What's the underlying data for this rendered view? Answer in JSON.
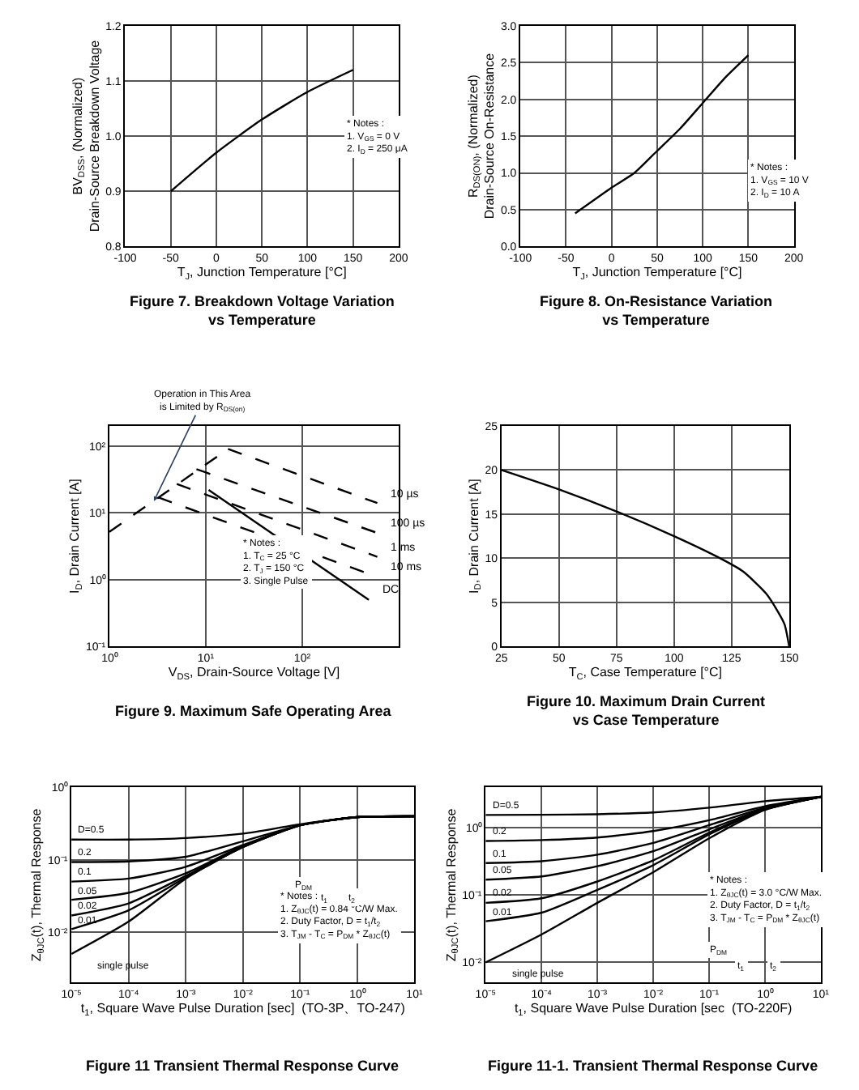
{
  "chart_data": [
    {
      "type": "line",
      "title": "Figure 7. Breakdown Voltage Variation\nvs Temperature",
      "xlabel": "T$_{J}$, Junction Temperature [°C]",
      "ylabel": "BV$_{DSS}$, (Normalized)\nDrain-Source Breakdown Voltage",
      "xlim": [
        -100,
        200
      ],
      "xticks": [
        -100,
        -50,
        0,
        50,
        100,
        150,
        200
      ],
      "ylim": [
        0.8,
        1.2
      ],
      "yticks": [
        0.8,
        0.9,
        {
          "value": 1,
          "label": "1.0"
        },
        1.1,
        1.2
      ],
      "grid": true,
      "series": [
        {
          "color": "#000000",
          "x": [
            -50,
            0,
            50,
            100,
            150
          ],
          "values": [
            0.9,
            0.97,
            1.03,
            1.08,
            1.12
          ]
        }
      ],
      "annotations": [
        "* Notes :\n1. V$_{GS}$ = 0 V\n2. I$_{D}$ = 250 μA"
      ]
    },
    {
      "type": "line",
      "title": "Figure 8. On-Resistance Variation\nvs Temperature",
      "xlabel": "T$_{J}$, Junction Temperature [°C]",
      "ylabel": "R$_{DS(ON)}$, (Normalized)\nDrain-Source On-Resistance",
      "xlim": [
        -100,
        200
      ],
      "xticks": [
        -100,
        -50,
        0,
        50,
        100,
        150,
        200
      ],
      "ylim": [
        0,
        3
      ],
      "yticks": [
        {
          "value": 0,
          "label": "0.0"
        },
        0.5,
        {
          "value": 1,
          "label": "1.0"
        },
        1.5,
        {
          "value": 2,
          "label": "2.0"
        },
        2.5,
        {
          "value": 3,
          "label": "3.0"
        }
      ],
      "grid": true,
      "series": [
        {
          "color": "#000000",
          "x": [
            -40,
            0,
            25,
            50,
            75,
            100,
            125,
            150
          ],
          "values": [
            0.45,
            0.8,
            1.0,
            1.3,
            1.6,
            1.95,
            2.3,
            2.6
          ]
        }
      ],
      "annotations": [
        "* Notes :\n1. V$_{GS}$ = 10 V\n2. I$_{D}$ = 10 A"
      ]
    },
    {
      "type": "line",
      "title": "Figure 9. Maximum Safe Operating Area",
      "xlabel": "V$_{DS}$, Drain-Source Voltage [V]",
      "ylabel": "I$_{D}$, Drain Current [A]",
      "log": "xy",
      "xlim": [
        1,
        1000
      ],
      "xticks": [
        {
          "value": 1,
          "label": "10⁰"
        },
        {
          "value": 10,
          "label": "10¹"
        },
        {
          "value": 100,
          "label": "10²"
        }
      ],
      "ylim": [
        0.1,
        200
      ],
      "yticks": [
        {
          "value": 0.1,
          "label": "10⁻¹"
        },
        {
          "value": 1,
          "label": "10⁰"
        },
        {
          "value": 10,
          "label": "10¹"
        },
        {
          "value": 100,
          "label": "10²"
        }
      ],
      "grid": true,
      "series": [
        {
          "color": "#000000",
          "line_style": "dashed",
          "x": [
            1,
            17
          ],
          "values": [
            5.2,
            90
          ]
        },
        {
          "name": "10 µs",
          "color": "#000000",
          "line_style": "dashed",
          "x": [
            17,
            600
          ],
          "values": [
            90,
            14
          ]
        },
        {
          "name": "100 µs",
          "color": "#000000",
          "line_style": "dashed",
          "x": [
            8,
            600
          ],
          "values": [
            45,
            5
          ]
        },
        {
          "name": "1 ms",
          "color": "#000000",
          "line_style": "dashed",
          "x": [
            5,
            600
          ],
          "values": [
            27,
            2.2
          ]
        },
        {
          "name": "10 ms",
          "color": "#000000",
          "line_style": "dashed",
          "x": [
            3.2,
            600
          ],
          "values": [
            17,
            1.1
          ]
        },
        {
          "name": "DC",
          "color": "#000000",
          "line_style": "solid",
          "x": [
            10.7,
            490
          ],
          "values": [
            22,
            0.5
          ]
        }
      ],
      "annotations": [
        {
          "text": "Operation in This Area\nis Limited by R$_{DS(on)}$",
          "x": 2.9,
          "y": 15
        },
        "* Notes :\n1. T$_{C}$ = 25 °C\n2. T$_{J}$ = 150 °C\n3. Single Pulse"
      ]
    },
    {
      "type": "line",
      "title": "Figure 10. Maximum Drain Current\nvs Case Temperature",
      "xlabel": "T$_{C}$, Case Temperature [°C]",
      "ylabel": "I$_{D}$, Drain Current [A]",
      "xlim": [
        25,
        150
      ],
      "xticks": [
        25,
        50,
        75,
        100,
        125,
        150
      ],
      "ylim": [
        0,
        25
      ],
      "yticks": [
        0,
        5,
        10,
        15,
        20,
        25
      ],
      "grid": true,
      "series": [
        {
          "color": "#000000",
          "x": [
            25,
            50,
            75,
            100,
            120,
            130,
            140,
            145,
            148,
            150
          ],
          "values": [
            20,
            17.8,
            15.3,
            12.5,
            10,
            8.5,
            6,
            4,
            2.5,
            0
          ]
        }
      ]
    },
    {
      "type": "line",
      "title": "Figure 11 Transient Thermal Response Curve",
      "xlabel": "t$_{1}$, Square Wave Pulse Duration [sec]  (TO-3P、TO-247)",
      "ylabel": "Z$_{θJC}$(t), Thermal Response",
      "log": "xy",
      "xlim": [
        1e-05,
        10
      ],
      "xticks": [
        {
          "value": 1e-05,
          "label": "10⁻⁵"
        },
        {
          "value": 0.0001,
          "label": "10⁻⁴"
        },
        {
          "value": 0.001,
          "label": "10⁻³"
        },
        {
          "value": 0.01,
          "label": "10⁻²"
        },
        {
          "value": 0.1,
          "label": "10⁻¹"
        },
        {
          "value": 1,
          "label": "10⁰"
        },
        {
          "value": 10,
          "label": "10¹"
        }
      ],
      "ylim": [
        0.002,
        1
      ],
      "yticks": [
        {
          "value": 0.01,
          "label": "10⁻²"
        },
        {
          "value": 0.1,
          "label": "10⁻¹"
        },
        {
          "value": 1,
          "label": "10⁰"
        }
      ],
      "grid": true,
      "series": [
        {
          "name": "D=0.5",
          "color": "#000000",
          "x": [
            1e-05,
            0.0001,
            0.001,
            0.01,
            0.1,
            1,
            10
          ],
          "values": [
            0.19,
            0.19,
            0.2,
            0.23,
            0.31,
            0.39,
            0.4
          ]
        },
        {
          "name": "0.2",
          "color": "#000000",
          "x": [
            1e-05,
            0.0001,
            0.001,
            0.01,
            0.1,
            1,
            10
          ],
          "values": [
            0.093,
            0.095,
            0.11,
            0.18,
            0.3,
            0.39,
            0.4
          ]
        },
        {
          "name": "0.1",
          "color": "#000000",
          "x": [
            1e-05,
            0.0001,
            0.001,
            0.01,
            0.1,
            1,
            10
          ],
          "values": [
            0.05,
            0.055,
            0.08,
            0.16,
            0.3,
            0.39,
            0.4
          ]
        },
        {
          "name": "0.05",
          "color": "#000000",
          "x": [
            1e-05,
            0.0001,
            0.001,
            0.01,
            0.1,
            1,
            10
          ],
          "values": [
            0.028,
            0.035,
            0.065,
            0.155,
            0.3,
            0.39,
            0.4
          ]
        },
        {
          "name": "0.02",
          "color": "#000000",
          "x": [
            1e-05,
            0.0001,
            0.001,
            0.01,
            0.1,
            1,
            10
          ],
          "values": [
            0.017,
            0.025,
            0.06,
            0.15,
            0.3,
            0.39,
            0.4
          ]
        },
        {
          "name": "0.01",
          "color": "#000000",
          "x": [
            1e-05,
            0.0001,
            0.001,
            0.01,
            0.1,
            1,
            10
          ],
          "values": [
            0.011,
            0.02,
            0.057,
            0.15,
            0.3,
            0.39,
            0.4
          ]
        },
        {
          "name": "single pulse",
          "color": "#000000",
          "x": [
            1e-05,
            0.0001,
            0.001,
            0.01,
            0.1,
            1,
            10
          ],
          "values": [
            0.005,
            0.014,
            0.055,
            0.15,
            0.3,
            0.39,
            0.4
          ]
        }
      ],
      "annotations": [
        "* Notes :\n1. Z$_{θJC}$(t) = 0.84 °C/W Max.\n2. Duty Factor, D = t$_{1}$/t$_{2}$\n3. T$_{JM}$ - T$_{C}$ = P$_{DM}$ * Z$_{θJC}$(t)",
        "P$_{DM}$",
        "t$_{1}$",
        "t$_{2}$"
      ]
    },
    {
      "type": "line",
      "title": "Figure 11-1. Transient Thermal Response Curve",
      "xlabel": "t$_{1}$, Square Wave Pulse Duration [sec  (TO-220F)",
      "ylabel": "Z$_{θJC}$(t), Thermal Response",
      "log": "xy",
      "xlim": [
        1e-05,
        10
      ],
      "xticks": [
        {
          "value": 1e-05,
          "label": "10⁻⁵"
        },
        {
          "value": 0.0001,
          "label": "10⁻⁴"
        },
        {
          "value": 0.001,
          "label": "10⁻³"
        },
        {
          "value": 0.01,
          "label": "10⁻²"
        },
        {
          "value": 0.1,
          "label": "10⁻¹"
        },
        {
          "value": 1,
          "label": "10⁰"
        },
        {
          "value": 10,
          "label": "10¹"
        }
      ],
      "ylim": [
        0.005,
        4
      ],
      "yticks": [
        {
          "value": 0.01,
          "label": "10⁻²"
        },
        {
          "value": 0.1,
          "label": "10⁻¹"
        },
        {
          "value": 1,
          "label": "10⁰"
        }
      ],
      "grid": true,
      "series": [
        {
          "name": "D=0.5",
          "color": "#000000",
          "x": [
            1e-05,
            0.0001,
            0.001,
            0.01,
            0.1,
            1,
            10
          ],
          "values": [
            1.56,
            1.57,
            1.6,
            1.7,
            2.0,
            2.5,
            2.9
          ]
        },
        {
          "name": "0.2",
          "color": "#000000",
          "x": [
            1e-05,
            0.0001,
            0.001,
            0.01,
            0.1,
            1,
            10
          ],
          "values": [
            0.64,
            0.66,
            0.72,
            0.9,
            1.3,
            2.1,
            2.9
          ]
        },
        {
          "name": "0.1",
          "color": "#000000",
          "x": [
            1e-05,
            0.0001,
            0.001,
            0.01,
            0.1,
            1,
            10
          ],
          "values": [
            0.3,
            0.32,
            0.4,
            0.6,
            1.1,
            2.0,
            2.9
          ]
        },
        {
          "name": "0.05",
          "color": "#000000",
          "x": [
            1e-05,
            0.0001,
            0.001,
            0.01,
            0.1,
            1,
            10
          ],
          "values": [
            0.17,
            0.19,
            0.27,
            0.45,
            0.95,
            1.95,
            2.9
          ]
        },
        {
          "name": "0.02",
          "color": "#000000",
          "x": [
            1e-05,
            0.0001,
            0.001,
            0.01,
            0.1,
            1,
            10
          ],
          "values": [
            0.077,
            0.09,
            0.16,
            0.33,
            0.85,
            1.9,
            2.9
          ]
        },
        {
          "name": "0.01",
          "color": "#000000",
          "x": [
            1e-05,
            0.0001,
            0.001,
            0.01,
            0.1,
            1,
            10
          ],
          "values": [
            0.041,
            0.055,
            0.12,
            0.28,
            0.8,
            1.88,
            2.9
          ]
        },
        {
          "name": "single pulse",
          "color": "#000000",
          "x": [
            1e-05,
            0.0001,
            0.001,
            0.01,
            0.1,
            1,
            10
          ],
          "values": [
            0.01,
            0.026,
            0.077,
            0.22,
            0.7,
            1.86,
            2.9
          ]
        }
      ],
      "annotations": [
        "* Notes :\n1. Z$_{θJC}$(t) = 3.0 °C/W Max.\n2. Duty Factor, D = t$_{1}$/t$_{2}$\n3. T$_{JM}$ - T$_{C}$ = P$_{DM}$ * Z$_{θJC}$(t)",
        "P$_{DM}$",
        "t$_{1}$",
        "t$_{2}$"
      ]
    }
  ]
}
